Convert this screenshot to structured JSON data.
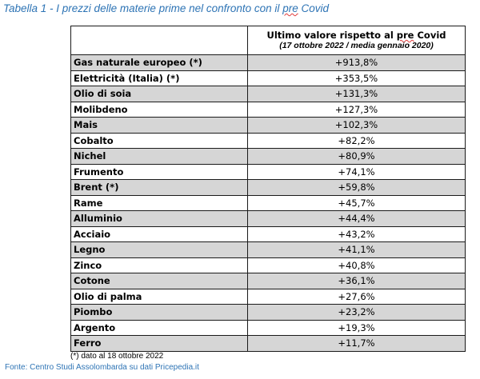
{
  "caption": {
    "prefix": "Tabella 1 - I prezzi delle materie prime nel confronto con il ",
    "underlined": "pre",
    "suffix": " Covid"
  },
  "table": {
    "header": {
      "title_prefix": "Ultimo valore rispetto al ",
      "title_underlined": "pre",
      "title_suffix": " Covid",
      "subtitle": "(17 ottobre 2022 / media gennaio 2020)"
    },
    "rows": [
      {
        "name": "Gas naturale europeo (*)",
        "value": "+913,8%",
        "shaded": true
      },
      {
        "name": "Elettricità (Italia) (*)",
        "value": "+353,5%",
        "shaded": false
      },
      {
        "name": "Olio di soia",
        "value": "+131,3%",
        "shaded": true
      },
      {
        "name": "Molibdeno",
        "value": "+127,3%",
        "shaded": false
      },
      {
        "name": "Mais",
        "value": "+102,3%",
        "shaded": true
      },
      {
        "name": "Cobalto",
        "value": "+82,2%",
        "shaded": false
      },
      {
        "name": "Nichel",
        "value": "+80,9%",
        "shaded": true
      },
      {
        "name": "Frumento",
        "value": "+74,1%",
        "shaded": false
      },
      {
        "name": "Brent (*)",
        "value": "+59,8%",
        "shaded": true
      },
      {
        "name": "Rame",
        "value": "+45,7%",
        "shaded": false
      },
      {
        "name": "Alluminio",
        "value": "+44,4%",
        "shaded": true
      },
      {
        "name": "Acciaio",
        "value": "+43,2%",
        "shaded": false
      },
      {
        "name": "Legno",
        "value": "+41,1%",
        "shaded": true
      },
      {
        "name": "Zinco",
        "value": "+40,8%",
        "shaded": false
      },
      {
        "name": "Cotone",
        "value": "+36,1%",
        "shaded": true
      },
      {
        "name": "Olio di palma",
        "value": "+27,6%",
        "shaded": false
      },
      {
        "name": "Piombo",
        "value": "+23,2%",
        "shaded": true
      },
      {
        "name": "Argento",
        "value": "+19,3%",
        "shaded": false
      },
      {
        "name": "Ferro",
        "value": "+11,7%",
        "shaded": true
      }
    ]
  },
  "footnote": "(*) dato al 18 ottobre 2022",
  "source": "Fonte: Centro Studi Assolombarda su dati Pricepedia.it",
  "colors": {
    "caption": "#2e74b5",
    "row_shade": "#d6d6d6",
    "border": "#1a1a1a"
  }
}
